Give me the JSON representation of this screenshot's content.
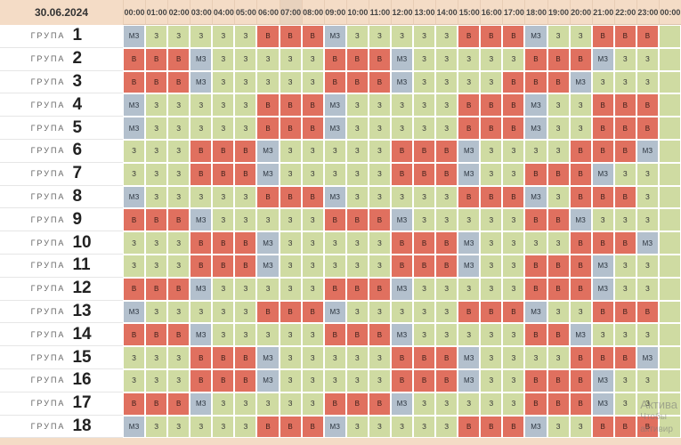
{
  "date": "30.06.2024",
  "hours": [
    "00:00",
    "01:00",
    "02:00",
    "03:00",
    "04:00",
    "05:00",
    "06:00",
    "07:00",
    "08:00",
    "09:00",
    "10:00",
    "11:00",
    "12:00",
    "13:00",
    "14:00",
    "15:00",
    "16:00",
    "17:00",
    "18:00",
    "19:00",
    "20:00",
    "21:00",
    "22:00",
    "23:00",
    "00:00"
  ],
  "current_hour_index": 7,
  "current_marker": "===",
  "group_word": "ГРУПА",
  "legend": {
    "z": "З",
    "v": "В",
    "m": "МЗ"
  },
  "colors": {
    "z": "#cfdba2",
    "v": "#e0705f",
    "m": "#b3c0cd",
    "header": "#f4dcc6",
    "now": "#2a3a8f"
  },
  "groups": [
    {
      "num": "1",
      "cells": "mzzzzzvvvmzzzzzvvvmzzvvv"
    },
    {
      "num": "2",
      "cells": "vvvmzzzzzvvvmzzzzzvvvmzz"
    },
    {
      "num": "3",
      "cells": "vvvmzzzzzvvvmzzzzvvvmzzz"
    },
    {
      "num": "4",
      "cells": "mzzzzzvvvmzzzzzvvvmzzvvv"
    },
    {
      "num": "5",
      "cells": "mzzzzzvvvmzzzzzvvvmzzvvv"
    },
    {
      "num": "6",
      "cells": "zzzvvvmzzzzzvvvmzzzzvvvm"
    },
    {
      "num": "7",
      "cells": "zzzvvvmzzzzzvvvmzzvvvmzz"
    },
    {
      "num": "8",
      "cells": "mzzzzzvvvmzzzzzvvvmzvvvz"
    },
    {
      "num": "9",
      "cells": "vvvmzzzzzvvvmzzzzzvvmzzz"
    },
    {
      "num": "10",
      "cells": "zzzvvvmzzzzzvvvmzzzzvvvm"
    },
    {
      "num": "11",
      "cells": "zzzvvvmzzzzzvvvmzzvvvmzz"
    },
    {
      "num": "12",
      "cells": "vvvmzzzzzvvvmzzzzzvvvmzz"
    },
    {
      "num": "13",
      "cells": "mzzzzzvvvmzzzzzvvvmzzvvv"
    },
    {
      "num": "14",
      "cells": "vvvmzzzzzvvvmzzzzzvvmzzz"
    },
    {
      "num": "15",
      "cells": "zzzvvvmzzzzzvvvmzzzzvvvm"
    },
    {
      "num": "16",
      "cells": "zzzvvvmzzzzzvvvmzzvvvmzz"
    },
    {
      "num": "17",
      "cells": "vvvmzzzzzvvvmzzzzzvvvmzz"
    },
    {
      "num": "18",
      "cells": "mzzzzzvvvmzzzzzvvvmzzvvv"
    }
  ],
  "watermark": {
    "line1": "Актива",
    "line2": "Чтобы",
    "line3": "активир"
  }
}
